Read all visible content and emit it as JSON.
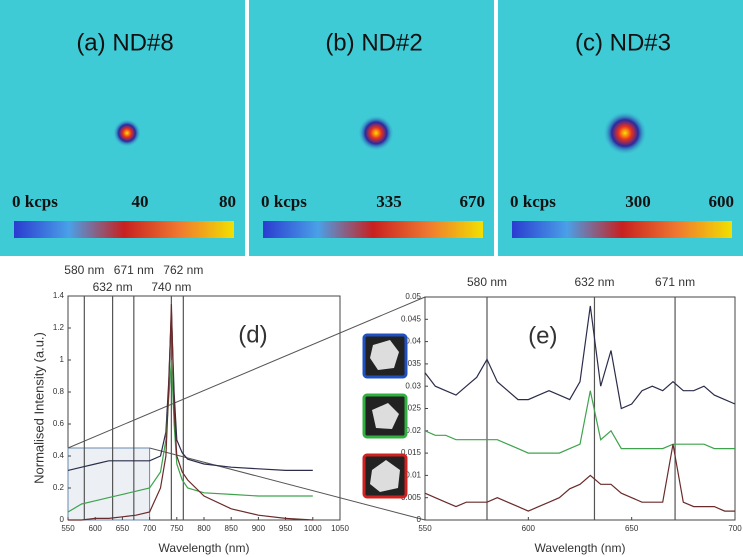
{
  "maps": [
    {
      "title": "(a) ND#8",
      "scale_labels": [
        "0 kcps",
        "40",
        "80"
      ]
    },
    {
      "title": "(b) ND#2",
      "scale_labels": [
        "0 kcps",
        "335",
        "670"
      ]
    },
    {
      "title": "(c) ND#3",
      "scale_labels": [
        "0 kcps",
        "300",
        "600"
      ]
    }
  ],
  "chart_data": [
    {
      "type": "line",
      "annotation": "(d)",
      "xlabel": "Wavelength (nm)",
      "ylabel": "Normalised Intensity (a.u.)",
      "x": [
        550,
        575,
        600,
        625,
        650,
        675,
        700,
        720,
        730,
        735,
        740,
        745,
        750,
        760,
        770,
        800,
        850,
        900,
        950,
        1000
      ],
      "series": [
        {
          "color": "#2b2d4a",
          "values": [
            0.31,
            0.33,
            0.35,
            0.37,
            0.37,
            0.37,
            0.37,
            0.4,
            0.55,
            0.85,
            1.3,
            0.8,
            0.5,
            0.42,
            0.38,
            0.35,
            0.33,
            0.32,
            0.31,
            0.31
          ]
        },
        {
          "color": "#3fa34d",
          "values": [
            0.05,
            0.1,
            0.12,
            0.14,
            0.16,
            0.18,
            0.2,
            0.3,
            0.5,
            0.75,
            1.0,
            0.6,
            0.35,
            0.25,
            0.2,
            0.17,
            0.16,
            0.15,
            0.15,
            0.15
          ]
        },
        {
          "color": "#6b2a2a",
          "values": [
            0.0,
            0.0,
            0.01,
            0.01,
            0.02,
            0.03,
            0.05,
            0.2,
            0.4,
            0.8,
            1.35,
            0.7,
            0.4,
            0.3,
            0.25,
            0.15,
            0.07,
            0.03,
            0.01,
            0.0
          ]
        }
      ],
      "vlines": [
        {
          "value": 580,
          "label": "580 nm"
        },
        {
          "value": 632,
          "label": "632 nm"
        },
        {
          "value": 671,
          "label": "671 nm"
        },
        {
          "value": 740,
          "label": "740 nm"
        },
        {
          "value": 762,
          "label": "762 nm"
        }
      ],
      "xlim": [
        550,
        1050
      ],
      "xticks": [
        550,
        600,
        650,
        700,
        750,
        800,
        850,
        900,
        950,
        1000,
        1050
      ],
      "ylim": [
        0,
        1.4
      ],
      "yticks": [
        0,
        0.2,
        0.4,
        0.6,
        0.8,
        1,
        1.2,
        1.4
      ]
    },
    {
      "type": "line",
      "annotation": "(e)",
      "xlabel": "Wavelength (nm)",
      "x": [
        550,
        555,
        560,
        565,
        570,
        575,
        580,
        585,
        590,
        595,
        600,
        605,
        610,
        615,
        620,
        625,
        630,
        635,
        640,
        645,
        650,
        655,
        660,
        665,
        670,
        675,
        680,
        685,
        690,
        695,
        700
      ],
      "series": [
        {
          "color": "#2b2d4a",
          "values": [
            0.033,
            0.03,
            0.029,
            0.028,
            0.03,
            0.032,
            0.036,
            0.031,
            0.029,
            0.027,
            0.027,
            0.028,
            0.029,
            0.028,
            0.027,
            0.031,
            0.048,
            0.03,
            0.038,
            0.025,
            0.026,
            0.029,
            0.03,
            0.029,
            0.031,
            0.029,
            0.029,
            0.03,
            0.028,
            0.027,
            0.026
          ]
        },
        {
          "color": "#3fa34d",
          "values": [
            0.02,
            0.019,
            0.019,
            0.018,
            0.018,
            0.018,
            0.018,
            0.018,
            0.017,
            0.016,
            0.015,
            0.015,
            0.015,
            0.015,
            0.016,
            0.017,
            0.029,
            0.018,
            0.02,
            0.016,
            0.016,
            0.016,
            0.016,
            0.016,
            0.017,
            0.017,
            0.017,
            0.017,
            0.016,
            0.016,
            0.016
          ]
        },
        {
          "color": "#6b2a2a",
          "values": [
            0.006,
            0.005,
            0.004,
            0.003,
            0.004,
            0.004,
            0.004,
            0.005,
            0.004,
            0.003,
            0.002,
            0.003,
            0.004,
            0.005,
            0.007,
            0.008,
            0.01,
            0.008,
            0.008,
            0.006,
            0.005,
            0.004,
            0.004,
            0.004,
            0.017,
            0.004,
            0.003,
            0.003,
            0.003,
            0.002,
            0.002
          ]
        }
      ],
      "vlines": [
        {
          "value": 580,
          "label": "580 nm"
        },
        {
          "value": 632,
          "label": "632 nm"
        },
        {
          "value": 671,
          "label": "671 nm"
        }
      ],
      "xlim": [
        550,
        700
      ],
      "xticks": [
        550,
        600,
        650,
        700
      ],
      "ylim": [
        0,
        0.05
      ],
      "yticks": [
        0,
        0.005,
        0.01,
        0.015,
        0.02,
        0.025,
        0.03,
        0.035,
        0.04,
        0.045,
        0.05
      ]
    }
  ]
}
